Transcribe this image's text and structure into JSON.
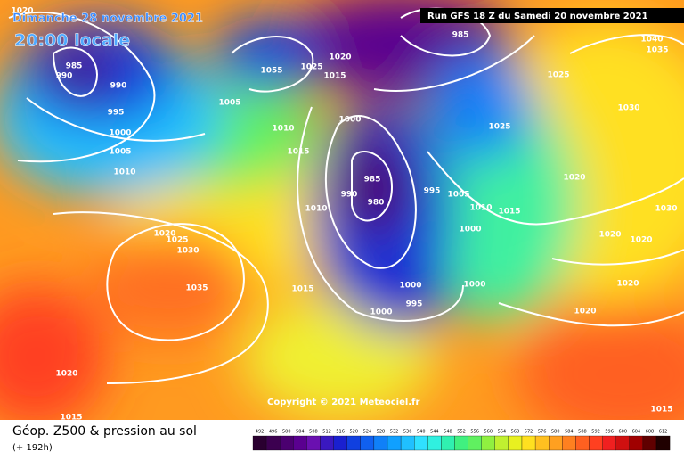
{
  "header": {
    "date": "Dimanche 28 novembre 2021",
    "time": "20:00 locale",
    "run": "Run GFS 18 Z du Samedi 20 novembre 2021"
  },
  "footer": {
    "title": "Géop. Z500 & pression au sol",
    "lead": "(+ 192h)",
    "copyright": "Copyright © 2021 Meteociel.fr"
  },
  "isobars": [
    "1020",
    "985",
    "990",
    "990",
    "995",
    "1000",
    "1005",
    "1010",
    "1055",
    "1025",
    "1020",
    "1015",
    "1005",
    "1010",
    "1015",
    "1000",
    "985",
    "1025",
    "1040",
    "1035",
    "1030",
    "1025",
    "1020",
    "985",
    "990",
    "980",
    "995",
    "1005",
    "1010",
    "1015",
    "1010",
    "1020",
    "1025",
    "1030",
    "1035",
    "1015",
    "1000",
    "1020",
    "1020",
    "1030",
    "1000",
    "1000",
    "995",
    "1000",
    "1020",
    "1020",
    "1020",
    "1015",
    "1015"
  ],
  "legend": {
    "labels": [
      "492",
      "496",
      "500",
      "504",
      "508",
      "512",
      "516",
      "520",
      "524",
      "528",
      "532",
      "536",
      "540",
      "544",
      "548",
      "552",
      "556",
      "560",
      "564",
      "568",
      "572",
      "576",
      "580",
      "584",
      "588",
      "592",
      "596",
      "600",
      "604",
      "608",
      "612"
    ],
    "colors": [
      "#2a0030",
      "#3c0050",
      "#4b0070",
      "#5a0090",
      "#6a10b0",
      "#3a18c0",
      "#1a20d0",
      "#1040e0",
      "#1060f0",
      "#1080f8",
      "#10a0ff",
      "#20c0ff",
      "#30e0ff",
      "#30f0e0",
      "#30f0b0",
      "#40f080",
      "#60f060",
      "#90f040",
      "#c0f030",
      "#e8f020",
      "#ffe020",
      "#ffc020",
      "#ffa020",
      "#ff8020",
      "#ff6020",
      "#ff4020",
      "#f02020",
      "#d01010",
      "#a00000",
      "#600000",
      "#200000"
    ]
  }
}
